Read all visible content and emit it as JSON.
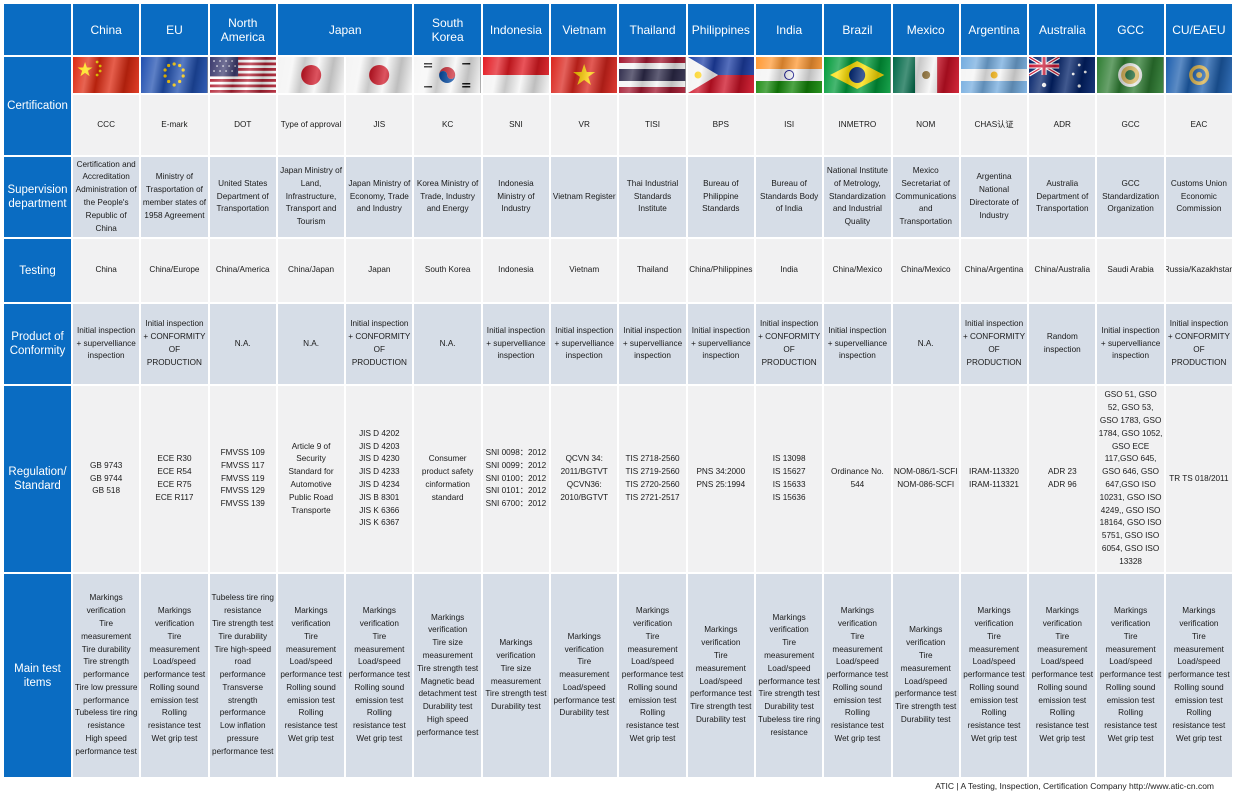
{
  "row_labels": [
    "Certification",
    "Supervision department",
    "Testing",
    "Product of Conformity",
    "Regulation/ Standard",
    "Main test items"
  ],
  "regions": [
    {
      "name": "China",
      "flag": "china-flag",
      "cert": "CCC",
      "supervision": "Certification and Accreditation Administration of the People's Republic of China",
      "testing": "China",
      "conformity": "Initial inspection + supervelliance inspection",
      "regulation": "GB 9743\nGB 9744\nGB 518",
      "tests": "Markings verification\nTire measurement\nTire durability\nTire strength performance\nTire low pressure performance\nTubeless tire ring resistance\nHigh speed performance test"
    },
    {
      "name": "EU",
      "flag": "eu-flag",
      "cert": "E-mark",
      "supervision": "Ministry of Trasportation of member states of 1958 Agreement",
      "testing": "China/Europe",
      "conformity": "Initial inspection + CONFORMITY OF PRODUCTION",
      "regulation": "ECE R30\nECE R54\nECE R75\nECE R117",
      "tests": "Markings verification\nTire measurement\nLoad/speed performance test\nRolling sound emission test\nRolling resistance test\nWet grip test"
    },
    {
      "name": "North America",
      "flag": "usa-flag",
      "cert": "DOT",
      "supervision": "United States Department of Transportation",
      "testing": "China/America",
      "conformity": "N.A.",
      "regulation": "FMVSS 109\nFMVSS 117\nFMVSS 119\nFMVSS 129\nFMVSS 139",
      "tests": "Tubeless tire ring resistance\nTire strength test\nTire durability\nTire high-speed road performance\nTransverse strength performance\nLow inflation pressure performance test"
    },
    {
      "name": "Japan",
      "flag": "japan-flag",
      "cert": "Type of approval",
      "supervision": "Japan  Ministry of Land, Infrastructure, Transport and Tourism",
      "testing": "China/Japan",
      "conformity": "N.A.",
      "regulation": "Article 9 of Security Standard for Automotive Public Road Transporte",
      "tests": "Markings verification\nTire measurement\nLoad/speed performance test\nRolling sound emission test\nRolling resistance test\nWet grip test"
    },
    {
      "name": "",
      "flag": "japan-flag",
      "cert": "JIS",
      "supervision": "Japan Ministry of Economy, Trade and Industry",
      "testing": "Japan",
      "conformity": "Initial inspection + CONFORMITY OF PRODUCTION",
      "regulation": "JIS D 4202\nJIS D 4203\nJIS D 4230\nJIS D 4233\nJIS D 4234\nJIS B 8301\nJIS K 6366\nJIS K 6367",
      "tests": "Markings verification\nTire measurement\nLoad/speed performance test\nRolling sound emission test\nRolling resistance test\nWet grip test"
    },
    {
      "name": "South Korea",
      "flag": "korea-flag",
      "cert": "KC",
      "supervision": "Korea Ministry of Trade, Industry and Energy",
      "testing": "South Korea",
      "conformity": "N.A.",
      "regulation": "Consumer product safety cinformation standard",
      "tests": "Markings verification\nTire size measurement\nTire strength test\nMagnetic bead detachment test\nDurability test\nHigh speed performance test"
    },
    {
      "name": "Indonesia",
      "flag": "indonesia-flag",
      "cert": "SNI",
      "supervision": "Indonesia Ministry of Industry",
      "testing": "Indonesia",
      "conformity": "Initial inspection + supervelliance inspection",
      "regulation": "SNI 0098：2012\nSNI 0099：2012\nSNI 0100：2012\nSNI 0101：2012\nSNI 6700：2012",
      "tests": "Markings verification\nTire size measurement\nTire strength test\nDurability test"
    },
    {
      "name": "Vietnam",
      "flag": "vietnam-flag",
      "cert": "VR",
      "supervision": "Vietnam Register",
      "testing": "Vietnam",
      "conformity": "Initial inspection + supervelliance inspection",
      "regulation": "QCVN 34: 2011/BGTVT\nQCVN36: 2010/BGTVT",
      "tests": "Markings verification\nTire measurement\nLoad/speed performance test\nDurability test"
    },
    {
      "name": "Thailand",
      "flag": "thailand-flag",
      "cert": "TISI",
      "supervision": "Thai Industrial Standards Institute",
      "testing": "Thailand",
      "conformity": "Initial inspection + supervelliance inspection",
      "regulation": "TIS 2718-2560\nTIS 2719-2560\nTIS 2720-2560\nTIS 2721-2517",
      "tests": "Markings verification\nTire measurement\nLoad/speed performance test\nRolling sound emission test\nRolling resistance test\nWet grip test"
    },
    {
      "name": "Philippines",
      "flag": "philippines-flag",
      "cert": "BPS",
      "supervision": "Bureau of Philippine Standards",
      "testing": "China/Philippines",
      "conformity": "Initial inspection + supervelliance inspection",
      "regulation": "PNS 34:2000\nPNS 25:1994",
      "tests": "Markings verification\nTire measurement\nLoad/speed performance test\nTire strength test\nDurability test"
    },
    {
      "name": "India",
      "flag": "india-flag",
      "cert": "ISI",
      "supervision": "Bureau of Standards Body of India",
      "testing": "India",
      "conformity": "Initial inspection + CONFORMITY OF PRODUCTION",
      "regulation": "IS 13098\nIS 15627\nIS 15633\nIS 15636",
      "tests": "Markings verification\nTire measurement\nLoad/speed performance test\nTire strength test\nDurability test\nTubeless tire ring resistance"
    },
    {
      "name": "Brazil",
      "flag": "brazil-flag",
      "cert": "INMETRO",
      "supervision": "National Institute of Metrology, Standardization and Industrial Quality",
      "testing": "China/Mexico",
      "conformity": "Initial inspection + supervelliance inspection",
      "regulation": "Ordinance No. 544",
      "tests": "Markings verification\nTire measurement\nLoad/speed performance test\nRolling sound emission test\nRolling resistance test\nWet grip test"
    },
    {
      "name": "Mexico",
      "flag": "mexico-flag",
      "cert": "NOM",
      "supervision": "Mexico Secretariat of Communications and Transportation",
      "testing": "China/Mexico",
      "conformity": "N.A.",
      "regulation": "NOM-086/1-SCFI\nNOM-086-SCFI",
      "tests": "Markings verification\nTire measurement\nLoad/speed performance test\nTire strength test\nDurability test"
    },
    {
      "name": "Argentina",
      "flag": "argentina-flag",
      "cert": "CHAS认证",
      "supervision": "Argentina National Directorate of Industry",
      "testing": "China/Argentina",
      "conformity": "Initial inspection + CONFORMITY OF PRODUCTION",
      "regulation": "IRAM-113320\nIRAM-113321",
      "tests": "Markings verification\nTire measurement\nLoad/speed performance test\nRolling sound emission test\nRolling resistance test\nWet grip test"
    },
    {
      "name": "Australia",
      "flag": "australia-flag",
      "cert": "ADR",
      "supervision": "Australia Department of Transportation",
      "testing": "China/Australia",
      "conformity": "Random inspection",
      "regulation": "ADR 23\nADR 96",
      "tests": "Markings verification\nTire measurement\nLoad/speed performance test\nRolling sound emission test\nRolling resistance test\nWet grip test"
    },
    {
      "name": "GCC",
      "flag": "gcc-flag",
      "cert": "GCC",
      "supervision": "GCC Standardization Organization",
      "testing": "Saudi Arabia",
      "conformity": "Initial inspection + supervelliance inspection",
      "regulation": "GSO 51,  GSO 52, GSO 53, GSO 1783, GSO 1784, GSO 1052, GSO ECE 117,GSO 645, GSO 646, GSO 647,GSO ISO 10231, GSO ISO 4249,, GSO ISO 18164, GSO ISO 5751, GSO ISO 6054, GSO ISO 13328",
      "tests": "Markings verification\nTire measurement\nLoad/speed performance test\nRolling sound emission test\nRolling resistance test\nWet grip test"
    },
    {
      "name": "CU/EAEU",
      "flag": "eaeu-flag",
      "cert": "EAC",
      "supervision": "Customs Union Economic Commission",
      "testing": "Russia/Kazakhstan",
      "conformity": "Initial inspection + CONFORMITY OF PRODUCTION",
      "regulation": "TR TS 018/2011",
      "tests": "Markings verification\nTire measurement\nLoad/speed performance test\nRolling sound emission test\nRolling resistance test\nWet grip test"
    }
  ],
  "footer": "ATIC | A Testing, Inspection, Certification Company  http://www.atic-cn.com"
}
